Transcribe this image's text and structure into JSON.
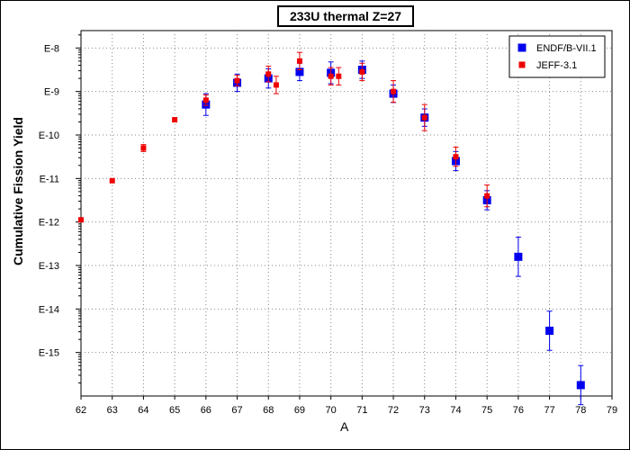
{
  "chart_data": {
    "type": "scatter",
    "title": "233U thermal Z=27",
    "xlabel": "A",
    "ylabel": "Cumulative Fission Yield",
    "xlim": [
      62,
      79
    ],
    "ylog": true,
    "ylim_decades": [
      -16,
      -7.6
    ],
    "x_ticks": [
      "62",
      "63",
      "64",
      "65",
      "66",
      "67",
      "68",
      "69",
      "70",
      "71",
      "72",
      "73",
      "74",
      "75",
      "76",
      "77",
      "78",
      "79"
    ],
    "y_ticks": [
      "E-8",
      "E-9",
      "E-10",
      "E-11",
      "E-12",
      "E-13",
      "E-14",
      "E-15"
    ],
    "grid": true,
    "legend_position": "top-right",
    "series": [
      {
        "name": "ENDF/B-VII.1",
        "color": "#0000ee",
        "marker": "square-large",
        "points": [
          {
            "x": 66,
            "log10y": -9.3,
            "err": 0.25
          },
          {
            "x": 67,
            "log10y": -8.8,
            "err": 0.2
          },
          {
            "x": 68,
            "log10y": -8.7,
            "err": 0.22
          },
          {
            "x": 69,
            "log10y": -8.55,
            "err": 0.2
          },
          {
            "x": 70,
            "log10y": -8.57,
            "err": 0.25
          },
          {
            "x": 71,
            "log10y": -8.5,
            "err": 0.2
          },
          {
            "x": 72,
            "log10y": -9.05,
            "err": 0.2
          },
          {
            "x": 73,
            "log10y": -9.6,
            "err": 0.2
          },
          {
            "x": 74,
            "log10y": -10.6,
            "err": 0.22
          },
          {
            "x": 75,
            "log10y": -11.5,
            "err": 0.22
          },
          {
            "x": 76,
            "log10y": -12.8,
            "err": 0.45
          },
          {
            "x": 77,
            "log10y": -14.5,
            "err": 0.45
          },
          {
            "x": 78,
            "log10y": -15.75,
            "err": 0.45
          }
        ]
      },
      {
        "name": "JEFF-3.1",
        "color": "#ee0000",
        "marker": "square-small",
        "points": [
          {
            "x": 62,
            "log10y": -11.95,
            "err": 0
          },
          {
            "x": 63,
            "log10y": -11.05,
            "err": 0
          },
          {
            "x": 64,
            "log10y": -10.3,
            "err": 0.08
          },
          {
            "x": 65,
            "log10y": -9.65,
            "err": 0
          },
          {
            "x": 66,
            "log10y": -9.2,
            "err": 0.12
          },
          {
            "x": 67,
            "log10y": -8.75,
            "err": 0.12
          },
          {
            "x": 68,
            "log10y": -8.6,
            "err": 0.18
          },
          {
            "x": 68.25,
            "log10y": -8.85,
            "err": 0.2
          },
          {
            "x": 69,
            "log10y": -8.3,
            "err": 0.2
          },
          {
            "x": 70,
            "log10y": -8.65,
            "err": 0.2
          },
          {
            "x": 70.25,
            "log10y": -8.65,
            "err": 0.2
          },
          {
            "x": 71,
            "log10y": -8.55,
            "err": 0.2
          },
          {
            "x": 72,
            "log10y": -9.0,
            "err": 0.25
          },
          {
            "x": 73,
            "log10y": -9.6,
            "err": 0.3
          },
          {
            "x": 74,
            "log10y": -10.5,
            "err": 0.22
          },
          {
            "x": 75,
            "log10y": -11.4,
            "err": 0.25
          }
        ]
      }
    ]
  }
}
